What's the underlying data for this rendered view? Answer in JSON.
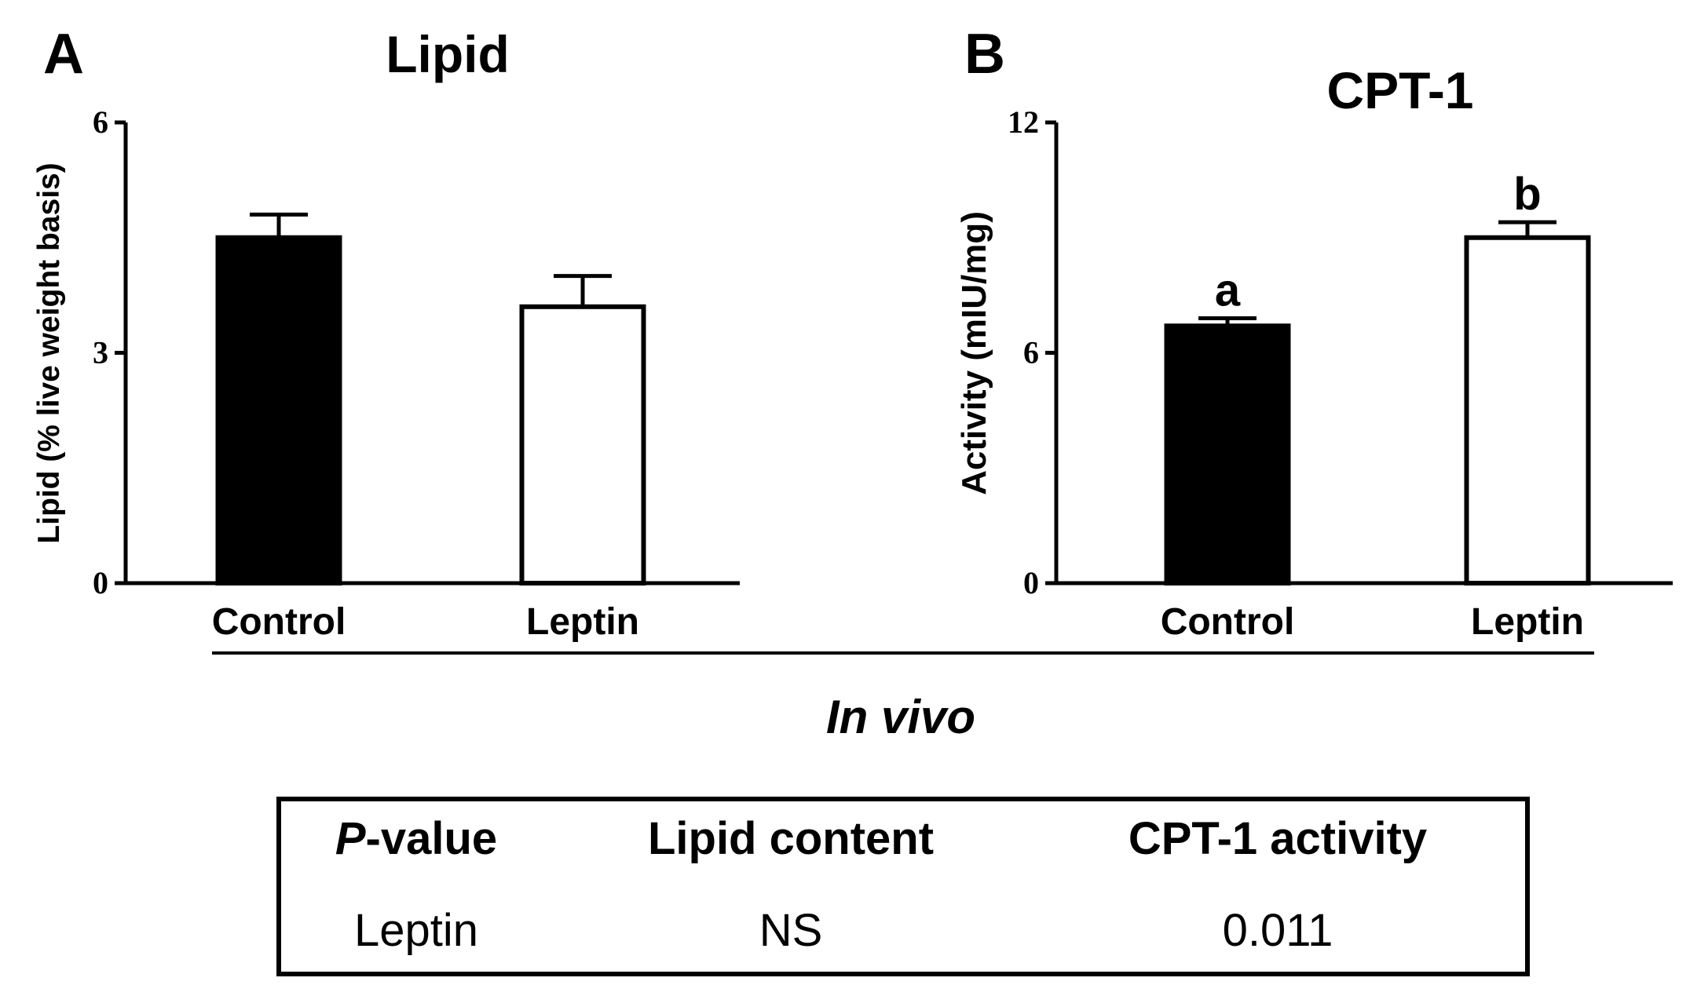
{
  "panels": [
    {
      "letter": "A",
      "title": "Lipid",
      "ylabel": "Lipid (% live weight basis)",
      "ylim": [
        0,
        6
      ],
      "yticks": [
        0,
        3,
        6
      ],
      "ytick_labels": [
        "0",
        "3",
        "6"
      ],
      "categories": [
        "Control",
        "Leptin"
      ]
    },
    {
      "letter": "B",
      "title": "CPT-1",
      "ylabel": "Activity (mIU/mg)",
      "ylim": [
        0,
        12
      ],
      "yticks": [
        0,
        6,
        12
      ],
      "ytick_labels": [
        "0",
        "6",
        "12"
      ],
      "categories": [
        "Control",
        "Leptin"
      ],
      "significance": [
        "a",
        "b"
      ]
    }
  ],
  "group_label": "In vivo",
  "table": {
    "headers": {
      "pvalue_italic": "P",
      "pvalue_rest": "-value",
      "lipid": "Lipid content",
      "cpt": "CPT-1 activity"
    },
    "row": {
      "label": "Leptin",
      "lipid": "NS",
      "cpt": "0.011"
    }
  },
  "colors": {
    "control": "#000000",
    "leptin": "#ffffff",
    "axis": "#000000"
  },
  "chart_data": [
    {
      "type": "bar",
      "title": "Lipid",
      "categories": [
        "Control",
        "Leptin"
      ],
      "values": [
        4.5,
        3.6
      ],
      "errors": [
        0.3,
        0.4
      ],
      "ylabel": "Lipid (% live weight basis)",
      "ylim": [
        0,
        6
      ]
    },
    {
      "type": "bar",
      "title": "CPT-1",
      "categories": [
        "Control",
        "Leptin"
      ],
      "values": [
        6.7,
        9.0
      ],
      "errors": [
        0.2,
        0.4
      ],
      "ylabel": "Activity (mIU/mg)",
      "ylim": [
        0,
        12
      ],
      "annotations": [
        "a",
        "b"
      ]
    }
  ]
}
